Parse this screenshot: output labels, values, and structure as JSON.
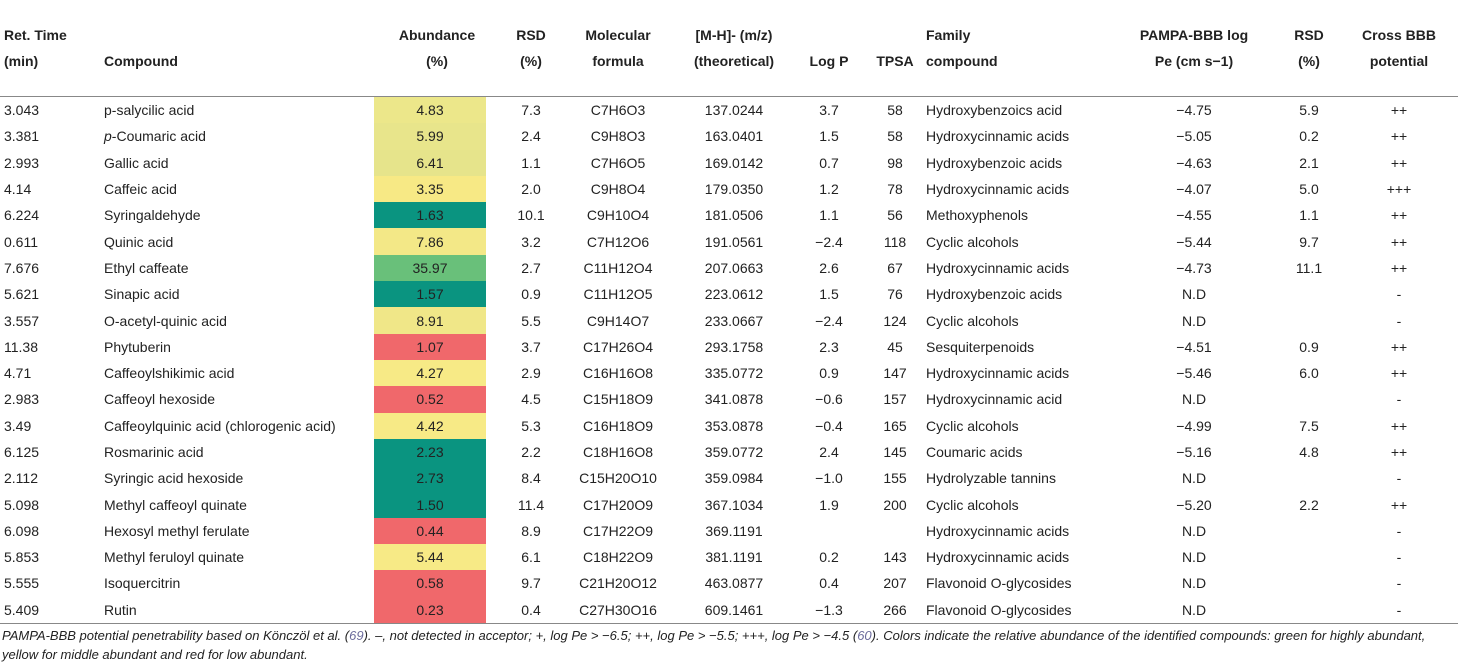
{
  "headers": {
    "ret_time": [
      "Ret. Time",
      "(min)"
    ],
    "compound": [
      "Compound"
    ],
    "abundance": [
      "Abundance",
      "(%)"
    ],
    "rsd": [
      "RSD",
      "(%)"
    ],
    "formula": [
      "Molecular",
      "formula"
    ],
    "mh": [
      "[M-H]- (m/z)",
      "(theoretical)"
    ],
    "logp": [
      "Log P"
    ],
    "tpsa": [
      "TPSA"
    ],
    "family": [
      "Family",
      "compound"
    ],
    "pampa": [
      "PAMPA-BBB log",
      "Pe (cm s−1)"
    ],
    "rsd2": [
      "RSD",
      "(%)"
    ],
    "cross": [
      "Cross BBB",
      "potential"
    ]
  },
  "colors": {
    "green_dark": "#0a9480",
    "green_light": "#69c07a",
    "yellow": "#f7ea86",
    "yellow_green": "#e7e58b",
    "red": "#f0686b"
  },
  "rows": [
    {
      "rt": "3.043",
      "compound": "p-salycilic acid",
      "abundance": "4.83",
      "color": "#ece78a",
      "rsd": "7.3",
      "formula": "C7H6O3",
      "mh": "137.0244",
      "logp": "3.7",
      "tpsa": "58",
      "family": "Hydroxybenzoics acid",
      "pampa": "−4.75",
      "rsd2": "5.9",
      "cross": "++"
    },
    {
      "rt": "3.381",
      "compound": "p-Coumaric acid",
      "abundance": "5.99",
      "color": "#e8e58b",
      "rsd": "2.4",
      "formula": "C9H8O3",
      "mh": "163.0401",
      "logp": "1.5",
      "tpsa": "58",
      "family": "Hydroxycinnamic acids",
      "pampa": "−5.05",
      "rsd2": "0.2",
      "cross": "++"
    },
    {
      "rt": "2.993",
      "compound": "Gallic acid",
      "abundance": "6.41",
      "color": "#e6e48b",
      "rsd": "1.1",
      "formula": "C7H6O5",
      "mh": "169.0142",
      "logp": "0.7",
      "tpsa": "98",
      "family": "Hydroxybenzoic acids",
      "pampa": "−4.63",
      "rsd2": "2.1",
      "cross": "++"
    },
    {
      "rt": "4.14",
      "compound": "Caffeic acid",
      "abundance": "3.35",
      "color": "#f7e985",
      "rsd": "2.0",
      "formula": "C9H8O4",
      "mh": "179.0350",
      "logp": "1.2",
      "tpsa": "78",
      "family": "Hydroxycinnamic acids",
      "pampa": "−4.07",
      "rsd2": "5.0",
      "cross": "+++"
    },
    {
      "rt": "6.224",
      "compound": "Syringaldehyde",
      "abundance": "1.63",
      "color": "#0a9480",
      "rsd": "10.1",
      "formula": "C9H10O4",
      "mh": "181.0506",
      "logp": "1.1",
      "tpsa": "56",
      "family": "Methoxyphenols",
      "pampa": "−4.55",
      "rsd2": "1.1",
      "cross": "++"
    },
    {
      "rt": "0.611",
      "compound": "Quinic acid",
      "abundance": "7.86",
      "color": "#f3e887",
      "rsd": "3.2",
      "formula": "C7H12O6",
      "mh": "191.0561",
      "logp": "−2.4",
      "tpsa": "118",
      "family": "Cyclic alcohols",
      "pampa": "−5.44",
      "rsd2": "9.7",
      "cross": "++"
    },
    {
      "rt": "7.676",
      "compound": "Ethyl caffeate",
      "abundance": "35.97",
      "color": "#69c07a",
      "rsd": "2.7",
      "formula": "C11H12O4",
      "mh": "207.0663",
      "logp": "2.6",
      "tpsa": "67",
      "family": "Hydroxycinnamic acids",
      "pampa": "−4.73",
      "rsd2": "11.1",
      "cross": "++"
    },
    {
      "rt": "5.621",
      "compound": "Sinapic acid",
      "abundance": "1.57",
      "color": "#0a9480",
      "rsd": "0.9",
      "formula": "C11H12O5",
      "mh": "223.0612",
      "logp": "1.5",
      "tpsa": "76",
      "family": "Hydroxybenzoic acids",
      "pampa": "N.D",
      "rsd2": "",
      "cross": "-"
    },
    {
      "rt": "3.557",
      "compound": "O-acetyl-quinic acid",
      "abundance": "8.91",
      "color": "#f0e788",
      "rsd": "5.5",
      "formula": "C9H14O7",
      "mh": "233.0667",
      "logp": "−2.4",
      "tpsa": "124",
      "family": "Cyclic alcohols",
      "pampa": "N.D",
      "rsd2": "",
      "cross": "-"
    },
    {
      "rt": "11.38",
      "compound": "Phytuberin",
      "abundance": "1.07",
      "color": "#f0686b",
      "rsd": "3.7",
      "formula": "C17H26O4",
      "mh": "293.1758",
      "logp": "2.3",
      "tpsa": "45",
      "family": "Sesquiterpenoids",
      "pampa": "−4.51",
      "rsd2": "0.9",
      "cross": "++"
    },
    {
      "rt": "4.71",
      "compound": "Caffeoylshikimic acid",
      "abundance": "4.27",
      "color": "#f7ea86",
      "rsd": "2.9",
      "formula": "C16H16O8",
      "mh": "335.0772",
      "logp": "0.9",
      "tpsa": "147",
      "family": "Hydroxycinnamic acids",
      "pampa": "−5.46",
      "rsd2": "6.0",
      "cross": "++"
    },
    {
      "rt": "2.983",
      "compound": "Caffeoyl hexoside",
      "abundance": "0.52",
      "color": "#f0686b",
      "rsd": "4.5",
      "formula": "C15H18O9",
      "mh": "341.0878",
      "logp": "−0.6",
      "tpsa": "157",
      "family": "Hydroxycinnamic acid",
      "pampa": "N.D",
      "rsd2": "",
      "cross": "-"
    },
    {
      "rt": "3.49",
      "compound": "Caffeoylquinic acid (chlorogenic acid)",
      "abundance": "4.42",
      "color": "#f7ea86",
      "rsd": "5.3",
      "formula": "C16H18O9",
      "mh": "353.0878",
      "logp": "−0.4",
      "tpsa": "165",
      "family": "Cyclic alcohols",
      "pampa": "−4.99",
      "rsd2": "7.5",
      "cross": "++"
    },
    {
      "rt": "6.125",
      "compound": "Rosmarinic acid",
      "abundance": "2.23",
      "color": "#0a9480",
      "rsd": "2.2",
      "formula": "C18H16O8",
      "mh": "359.0772",
      "logp": "2.4",
      "tpsa": "145",
      "family": "Coumaric acids",
      "pampa": "−5.16",
      "rsd2": "4.8",
      "cross": "++"
    },
    {
      "rt": "2.112",
      "compound": "Syringic acid hexoside",
      "abundance": "2.73",
      "color": "#0a9480",
      "rsd": "8.4",
      "formula": "C15H20O10",
      "mh": "359.0984",
      "logp": "−1.0",
      "tpsa": "155",
      "family": "Hydrolyzable tannins",
      "pampa": "N.D",
      "rsd2": "",
      "cross": "-"
    },
    {
      "rt": "5.098",
      "compound": "Methyl caffeoyl quinate",
      "abundance": "1.50",
      "color": "#0a9480",
      "rsd": "11.4",
      "formula": "C17H20O9",
      "mh": "367.1034",
      "logp": "1.9",
      "tpsa": "200",
      "family": "Cyclic alcohols",
      "pampa": "−5.20",
      "rsd2": "2.2",
      "cross": "++"
    },
    {
      "rt": "6.098",
      "compound": "Hexosyl methyl ferulate",
      "abundance": "0.44",
      "color": "#f0686b",
      "rsd": "8.9",
      "formula": "C17H22O9",
      "mh": "369.1191",
      "logp": "",
      "tpsa": "",
      "family": "Hydroxycinnamic acids",
      "pampa": "N.D",
      "rsd2": "",
      "cross": "-"
    },
    {
      "rt": "5.853",
      "compound": "Methyl feruloyl quinate",
      "abundance": "5.44",
      "color": "#f7ea86",
      "rsd": "6.1",
      "formula": "C18H22O9",
      "mh": "381.1191",
      "logp": "0.2",
      "tpsa": "143",
      "family": "Hydroxycinnamic acids",
      "pampa": "N.D",
      "rsd2": "",
      "cross": "-"
    },
    {
      "rt": "5.555",
      "compound": "Isoquercitrin",
      "abundance": "0.58",
      "color": "#f0686b",
      "rsd": "9.7",
      "formula": "C21H20O12",
      "mh": "463.0877",
      "logp": "0.4",
      "tpsa": "207",
      "family": "Flavonoid O-glycosides",
      "pampa": "N.D",
      "rsd2": "",
      "cross": "-"
    },
    {
      "rt": "5.409",
      "compound": "Rutin",
      "abundance": "0.23",
      "color": "#f0686b",
      "rsd": "0.4",
      "formula": "C27H30O16",
      "mh": "609.1461",
      "logp": "−1.3",
      "tpsa": "266",
      "family": "Flavonoid O-glycosides",
      "pampa": "N.D",
      "rsd2": "",
      "cross": "-"
    }
  ],
  "footnote": {
    "part1": "PAMPA-BBB potential penetrability based on Könczöl et al. (",
    "ref1": "69",
    "part2": "). –, not detected in acceptor; +, log Pe > −6.5; ++, log Pe > −5.5; +++, log Pe > −4.5 (",
    "ref2": "60",
    "part3": "). Colors indicate the relative abundance of the identified compounds: green for highly abundant, yellow for middle abundant and red for low abundant."
  }
}
